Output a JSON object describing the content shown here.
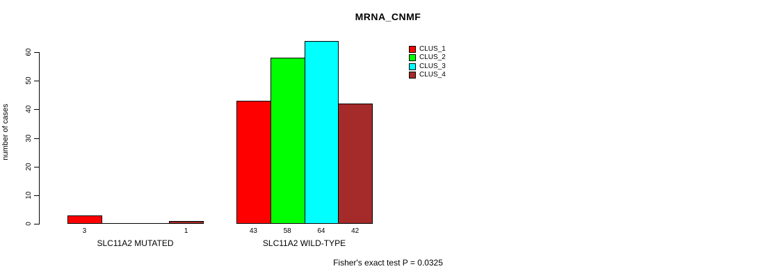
{
  "page": {
    "background": "#ffffff",
    "foreground": "#000000"
  },
  "chart_data": {
    "type": "bar",
    "title": "MRNA_CNMF",
    "xlabel": "",
    "ylabel": "number of cases",
    "ylim": [
      0,
      60
    ],
    "yticks": [
      0,
      10,
      20,
      30,
      40,
      50,
      60
    ],
    "grid": false,
    "legend_position": "top-right",
    "categories": [
      "SLC11A2 MUTATED",
      "SLC11A2 WILD-TYPE"
    ],
    "series": [
      {
        "name": "CLUS_1",
        "color": "#ff0000",
        "values": [
          3,
          43
        ]
      },
      {
        "name": "CLUS_2",
        "color": "#00ff00",
        "values": [
          0,
          58
        ]
      },
      {
        "name": "CLUS_3",
        "color": "#00ffff",
        "values": [
          0,
          64
        ]
      },
      {
        "name": "CLUS_4",
        "color": "#a52a2a",
        "values": [
          1,
          42
        ]
      }
    ],
    "bar_value_labels": [
      [
        "3",
        "",
        "",
        "1"
      ],
      [
        "43",
        "58",
        "64",
        "42"
      ]
    ],
    "annotation": "Fisher's exact test P = 0.0325"
  },
  "legend": {
    "items": [
      {
        "label": "CLUS_1",
        "color": "#ff0000"
      },
      {
        "label": "CLUS_2",
        "color": "#00ff00"
      },
      {
        "label": "CLUS_3",
        "color": "#00ffff"
      },
      {
        "label": "CLUS_4",
        "color": "#a52a2a"
      }
    ]
  }
}
